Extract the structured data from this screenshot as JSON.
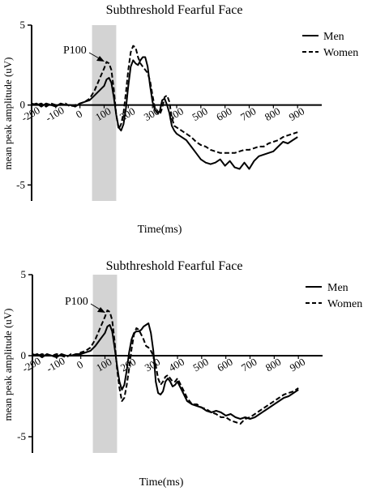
{
  "chart_data": [
    {
      "type": "line",
      "title": "Subthreshold Fearful Face",
      "xlabel": "Time(ms)",
      "ylabel": "mean peak amplitude (uV)",
      "xlim": [
        -200,
        1000
      ],
      "ylim": [
        -6,
        5
      ],
      "x_ticks": [
        "-200",
        "-100",
        "0",
        "100",
        "200",
        "300",
        "400",
        "500",
        "600",
        "700",
        "800",
        "900"
      ],
      "y_ticks": [
        "5",
        "0",
        "-5"
      ],
      "legend_position": "top-right",
      "annotation": "P100",
      "highlight_window": [
        50,
        150
      ],
      "series": [
        {
          "name": "Men",
          "style": "solid",
          "x": [
            -200,
            -180,
            -160,
            -140,
            -120,
            -100,
            -80,
            -60,
            -40,
            -20,
            0,
            20,
            40,
            60,
            80,
            100,
            110,
            120,
            130,
            140,
            150,
            160,
            170,
            180,
            190,
            200,
            210,
            220,
            230,
            240,
            250,
            260,
            270,
            280,
            290,
            300,
            310,
            320,
            330,
            340,
            350,
            360,
            370,
            380,
            390,
            400,
            420,
            440,
            460,
            480,
            500,
            520,
            540,
            560,
            580,
            600,
            620,
            640,
            660,
            680,
            700,
            720,
            740,
            760,
            780,
            800,
            820,
            840,
            860,
            880,
            900
          ],
          "values": [
            0,
            0.1,
            -0.1,
            0.1,
            0,
            -0.1,
            0.1,
            0,
            0,
            -0.1,
            0.1,
            0.2,
            0.3,
            0.6,
            0.9,
            1.2,
            1.6,
            1.7,
            1.4,
            0.5,
            -0.6,
            -1.4,
            -1.6,
            -1.2,
            -0.2,
            1.2,
            2.4,
            2.8,
            2.6,
            2.5,
            2.8,
            3.0,
            3.0,
            2.4,
            1.2,
            0.2,
            -0.3,
            -0.5,
            -0.4,
            0.3,
            0.4,
            0,
            -0.5,
            -1.3,
            -1.6,
            -1.8,
            -2.0,
            -2.2,
            -2.6,
            -3.0,
            -3.4,
            -3.6,
            -3.7,
            -3.6,
            -3.4,
            -3.8,
            -3.5,
            -3.9,
            -4.0,
            -3.6,
            -4.0,
            -3.5,
            -3.2,
            -3.1,
            -3.0,
            -2.9,
            -2.6,
            -2.3,
            -2.4,
            -2.2,
            -2.0
          ]
        },
        {
          "name": "Women",
          "style": "dashed",
          "x": [
            -200,
            -180,
            -160,
            -140,
            -120,
            -100,
            -80,
            -60,
            -40,
            -20,
            0,
            20,
            40,
            60,
            80,
            100,
            110,
            120,
            130,
            140,
            150,
            160,
            170,
            180,
            190,
            200,
            210,
            220,
            230,
            240,
            250,
            260,
            270,
            280,
            290,
            300,
            310,
            320,
            330,
            340,
            350,
            360,
            370,
            380,
            390,
            400,
            420,
            440,
            460,
            480,
            500,
            520,
            540,
            560,
            580,
            600,
            620,
            640,
            660,
            680,
            700,
            720,
            740,
            760,
            780,
            800,
            820,
            840,
            860,
            880,
            900
          ],
          "values": [
            0.1,
            0,
            0.1,
            -0.1,
            0.1,
            0,
            0,
            0.1,
            -0.1,
            0,
            0.1,
            0.2,
            0.4,
            0.9,
            1.6,
            2.3,
            2.7,
            2.6,
            2.2,
            1.0,
            -0.6,
            -1.5,
            -1.2,
            -0.5,
            0.8,
            2.2,
            3.3,
            3.7,
            3.6,
            3.0,
            2.6,
            2.4,
            2.2,
            2.0,
            1.5,
            0.6,
            -0.2,
            -0.5,
            -0.6,
            -0.2,
            0.5,
            0.6,
            0.2,
            -0.8,
            -1.3,
            -1.4,
            -1.6,
            -1.8,
            -2.0,
            -2.3,
            -2.5,
            -2.6,
            -2.8,
            -2.9,
            -3.0,
            -3.0,
            -3.0,
            -3.0,
            -2.9,
            -2.8,
            -2.8,
            -2.7,
            -2.6,
            -2.6,
            -2.4,
            -2.3,
            -2.2,
            -2.0,
            -1.9,
            -1.8,
            -1.7
          ]
        }
      ]
    },
    {
      "type": "line",
      "title": "Subthreshold Fearful Face",
      "xlabel": "Time(ms)",
      "ylabel": "mean peak amplitude (uV)",
      "xlim": [
        -200,
        1000
      ],
      "ylim": [
        -6,
        5
      ],
      "x_ticks": [
        "-200",
        "-100",
        "0",
        "100",
        "200",
        "300",
        "400",
        "500",
        "600",
        "700",
        "800",
        "900"
      ],
      "y_ticks": [
        "5",
        "0",
        "-5"
      ],
      "legend_position": "top-right",
      "annotation": "P100",
      "highlight_window": [
        50,
        150
      ],
      "series": [
        {
          "name": "Men",
          "style": "solid",
          "x": [
            -200,
            -180,
            -160,
            -140,
            -120,
            -100,
            -80,
            -60,
            -40,
            -20,
            0,
            20,
            40,
            60,
            80,
            100,
            110,
            120,
            130,
            140,
            150,
            160,
            170,
            180,
            190,
            200,
            210,
            220,
            230,
            240,
            250,
            260,
            270,
            280,
            290,
            300,
            310,
            320,
            330,
            340,
            350,
            360,
            370,
            380,
            390,
            400,
            420,
            440,
            460,
            480,
            500,
            520,
            540,
            560,
            580,
            600,
            620,
            640,
            660,
            680,
            700,
            720,
            740,
            760,
            780,
            800,
            820,
            840,
            860,
            880,
            900
          ],
          "values": [
            0,
            0.1,
            -0.1,
            0.1,
            0,
            -0.1,
            0.1,
            0,
            0,
            0.1,
            0.1,
            0.2,
            0.3,
            0.6,
            1.0,
            1.4,
            1.8,
            1.9,
            1.5,
            0.5,
            -0.6,
            -1.6,
            -2.1,
            -1.8,
            -0.9,
            0.2,
            1.0,
            1.4,
            1.5,
            1.5,
            1.6,
            1.8,
            1.9,
            2.0,
            1.4,
            0.3,
            -1.6,
            -2.3,
            -2.4,
            -2.2,
            -1.6,
            -1.4,
            -1.6,
            -1.9,
            -1.8,
            -1.6,
            -2.2,
            -2.8,
            -3.0,
            -3.1,
            -3.2,
            -3.4,
            -3.5,
            -3.4,
            -3.5,
            -3.7,
            -3.6,
            -3.8,
            -3.9,
            -3.8,
            -3.9,
            -3.8,
            -3.6,
            -3.4,
            -3.2,
            -3.0,
            -2.8,
            -2.6,
            -2.5,
            -2.3,
            -2.1
          ]
        },
        {
          "name": "Women",
          "style": "dashed",
          "x": [
            -200,
            -180,
            -160,
            -140,
            -120,
            -100,
            -80,
            -60,
            -40,
            -20,
            0,
            20,
            40,
            60,
            80,
            100,
            110,
            120,
            130,
            140,
            150,
            160,
            170,
            180,
            190,
            200,
            210,
            220,
            230,
            240,
            250,
            260,
            270,
            280,
            290,
            300,
            310,
            320,
            330,
            340,
            350,
            360,
            370,
            380,
            390,
            400,
            420,
            440,
            460,
            480,
            500,
            520,
            540,
            560,
            580,
            600,
            620,
            640,
            660,
            680,
            700,
            720,
            740,
            760,
            780,
            800,
            820,
            840,
            860,
            880,
            900
          ],
          "values": [
            0.1,
            0,
            0.1,
            0,
            0,
            0.1,
            0,
            -0.1,
            0.1,
            0,
            0.2,
            0.3,
            0.5,
            1.0,
            1.7,
            2.4,
            2.8,
            2.7,
            2.2,
            0.9,
            -0.8,
            -2.0,
            -2.8,
            -2.6,
            -1.8,
            -0.8,
            0.4,
            1.3,
            1.7,
            1.6,
            1.3,
            1.0,
            0.6,
            0.5,
            0.3,
            0,
            -0.6,
            -1.4,
            -1.8,
            -1.6,
            -1.3,
            -1.2,
            -1.4,
            -1.6,
            -1.6,
            -1.4,
            -2.0,
            -2.6,
            -3.0,
            -3.0,
            -3.2,
            -3.3,
            -3.5,
            -3.6,
            -3.8,
            -3.8,
            -4.0,
            -4.1,
            -4.2,
            -3.9,
            -3.8,
            -3.6,
            -3.4,
            -3.2,
            -3.0,
            -2.8,
            -2.6,
            -2.4,
            -2.3,
            -2.2,
            -2.0
          ]
        }
      ]
    }
  ]
}
